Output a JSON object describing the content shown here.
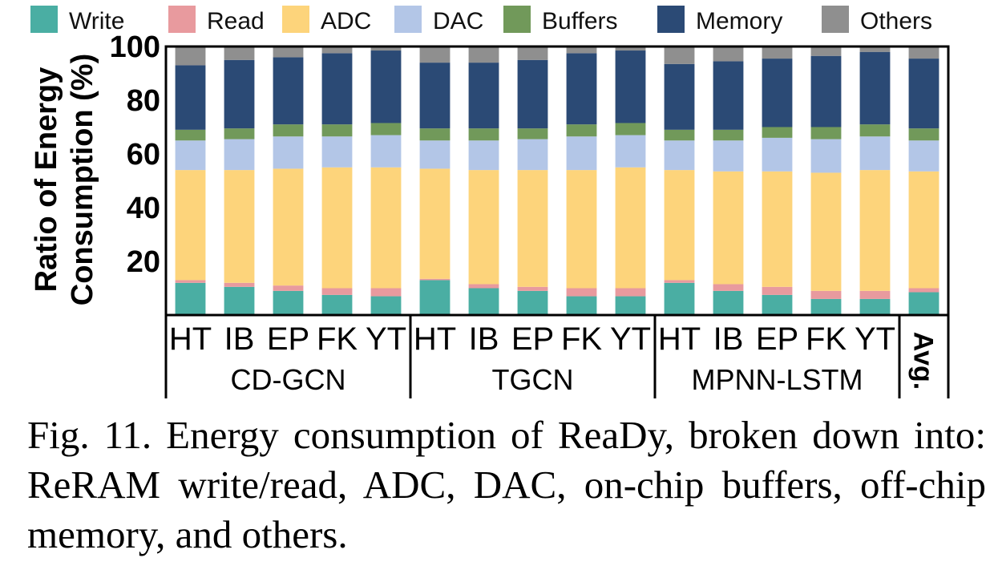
{
  "chart_data": {
    "type": "bar",
    "stacked": true,
    "ylabel_lines": [
      "Ratio of Energy",
      "Consumption (%)"
    ],
    "ylim": [
      0,
      100
    ],
    "yticks": [
      20,
      40,
      60,
      80,
      100
    ],
    "legend_position": "top",
    "series": [
      {
        "name": "Write",
        "color": "#4aaea3",
        "values": [
          12,
          10.5,
          9,
          7.5,
          7,
          13,
          10,
          9,
          7,
          7,
          12,
          9,
          7.5,
          6,
          6,
          8.5
        ]
      },
      {
        "name": "Read",
        "color": "#e89a9e",
        "values": [
          1,
          1.5,
          2,
          2.5,
          3,
          0.5,
          1.5,
          1.5,
          3,
          3,
          1,
          2.5,
          3,
          3,
          3,
          1.5
        ]
      },
      {
        "name": "ADC",
        "color": "#fdd47b",
        "values": [
          41,
          42,
          43.5,
          45,
          45,
          41,
          42.5,
          43.5,
          44,
          45,
          41,
          42,
          43,
          44,
          45,
          43.5
        ]
      },
      {
        "name": "DAC",
        "color": "#b3c6e7",
        "values": [
          11,
          11.5,
          12,
          11.5,
          12,
          10.5,
          11,
          11.5,
          12.5,
          12,
          11,
          11.5,
          12.5,
          12.5,
          12.5,
          11.5
        ]
      },
      {
        "name": "Buffers",
        "color": "#71995a",
        "values": [
          4,
          4,
          4.5,
          4.5,
          4.5,
          4.5,
          4.5,
          4,
          4.5,
          4.5,
          4,
          4,
          4,
          4.5,
          4.5,
          4.5
        ]
      },
      {
        "name": "Memory",
        "color": "#2b4a75",
        "values": [
          24,
          25.5,
          25,
          26.5,
          27,
          24.5,
          24.5,
          25.5,
          26.5,
          27,
          24.5,
          25.5,
          25.5,
          26.5,
          27,
          26
        ]
      },
      {
        "name": "Others",
        "color": "#8f8f8f",
        "values": [
          7,
          5,
          4,
          2.5,
          1.5,
          6,
          6,
          5,
          2.5,
          1.5,
          6.5,
          5.5,
          4.5,
          3.5,
          2,
          4.5
        ]
      }
    ],
    "categories": [
      "HT",
      "IB",
      "EP",
      "FK",
      "YT",
      "HT",
      "IB",
      "EP",
      "FK",
      "YT",
      "HT",
      "IB",
      "EP",
      "FK",
      "YT",
      "Avg."
    ],
    "groups": [
      {
        "label": "CD-GCN",
        "count": 5
      },
      {
        "label": "TGCN",
        "count": 5
      },
      {
        "label": "MPNN-LSTM",
        "count": 5
      },
      {
        "label": "",
        "count": 1
      }
    ]
  },
  "caption": {
    "text": "Fig. 11.  Energy consumption of ReaDy, broken down into: ReRAM write/read, ADC, DAC, on-chip buffers, off-chip memory, and others."
  }
}
